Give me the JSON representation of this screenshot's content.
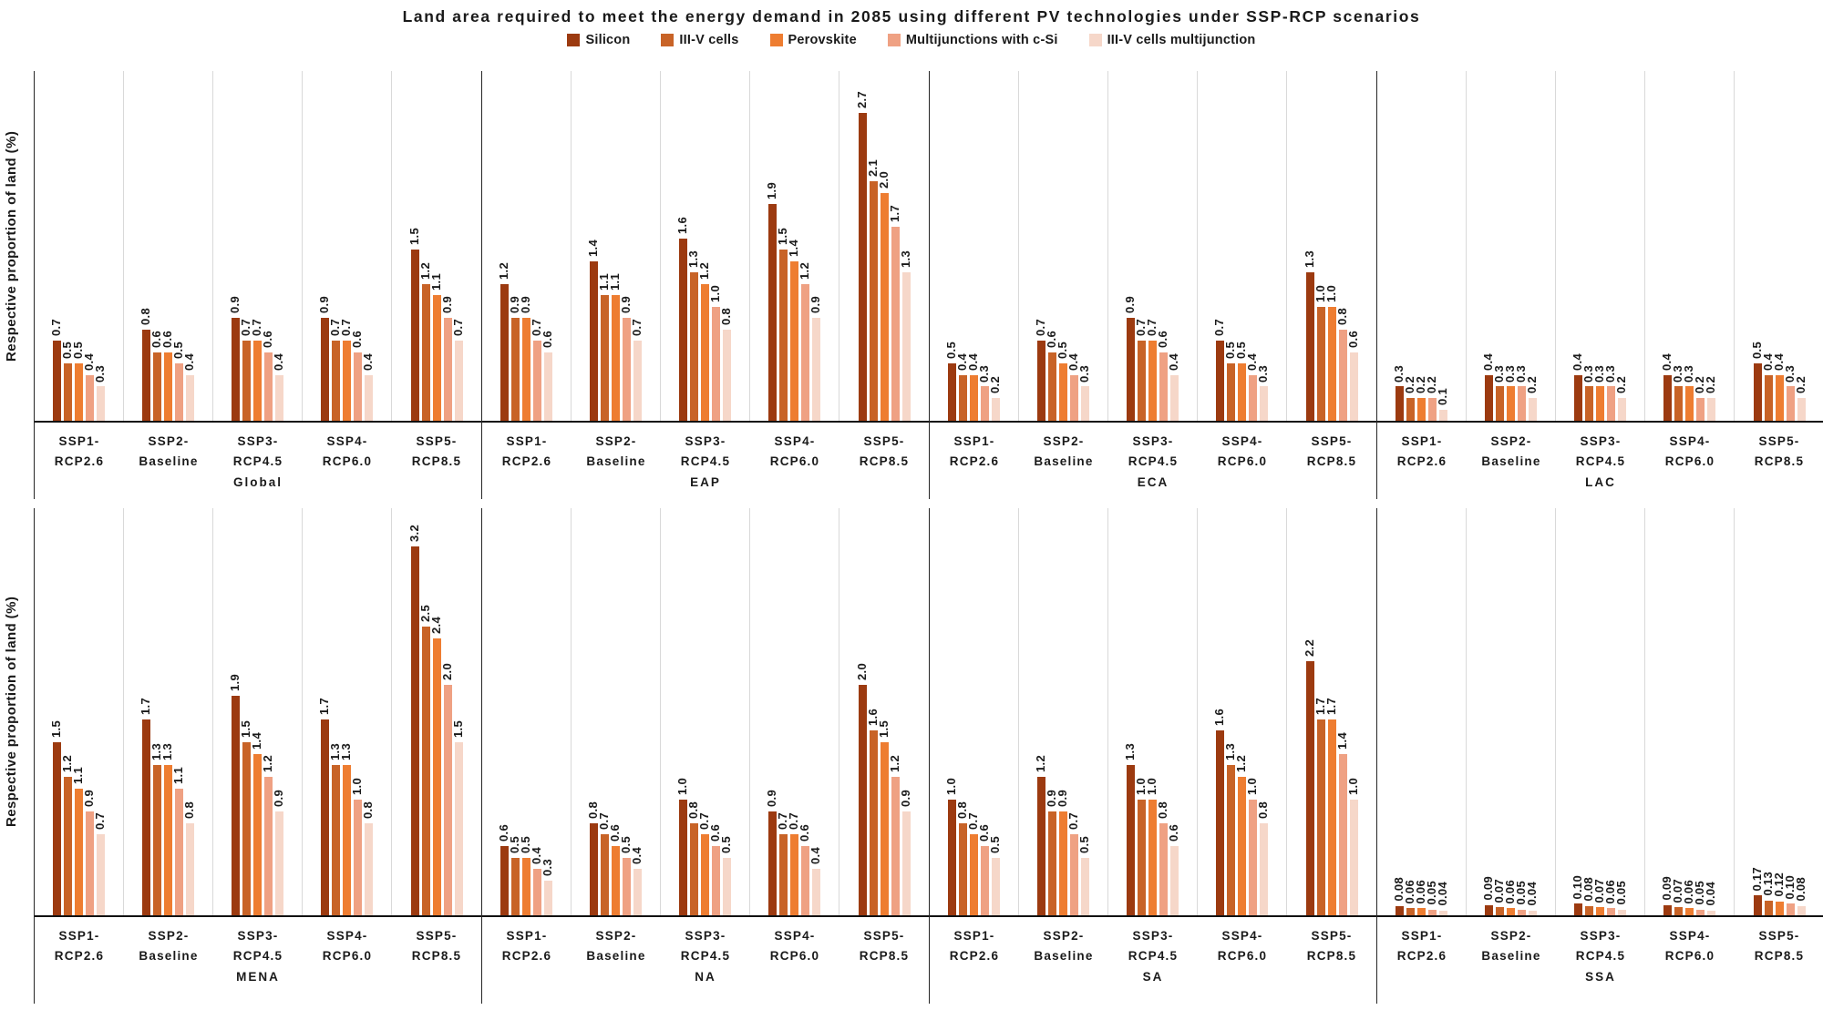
{
  "chart_data": {
    "type": "bar",
    "title": "Land area required to meet the energy demand in 2085 using different PV technologies under SSP-RCP scenarios",
    "ylabel": "Respective proportion of land (%)",
    "legend_position": "top",
    "grid": "vertical-lines-between-groups",
    "series_names": [
      "Silicon",
      "III-V cells",
      "Perovskite",
      "Multijunctions with c-Si",
      "III-V cells multijunction"
    ],
    "series_colors": [
      "#9C3A10",
      "#C86327",
      "#EE7D31",
      "#EFA183",
      "#F6D7C9"
    ],
    "scenarios": [
      "SSP1-RCP2.6",
      "SSP2-Baseline",
      "SSP3-RCP4.5",
      "SSP4-RCP6.0",
      "SSP5-RCP8.5"
    ],
    "rows": [
      {
        "ymax": 3.07,
        "regions": [
          {
            "name": "Global",
            "values": [
              [
                "0.7",
                "0.5",
                "0.5",
                "0.4",
                "0.3"
              ],
              [
                "0.8",
                "0.6",
                "0.6",
                "0.5",
                "0.4"
              ],
              [
                "0.9",
                "0.7",
                "0.7",
                "0.6",
                "0.4"
              ],
              [
                "0.9",
                "0.7",
                "0.7",
                "0.6",
                "0.4"
              ],
              [
                "1.5",
                "1.2",
                "1.1",
                "0.9",
                "0.7"
              ]
            ]
          },
          {
            "name": "EAP",
            "values": [
              [
                "1.2",
                "0.9",
                "0.9",
                "0.7",
                "0.6"
              ],
              [
                "1.4",
                "1.1",
                "1.1",
                "0.9",
                "0.7"
              ],
              [
                "1.6",
                "1.3",
                "1.2",
                "1.0",
                "0.8"
              ],
              [
                "1.9",
                "1.5",
                "1.4",
                "1.2",
                "0.9"
              ],
              [
                "2.7",
                "2.1",
                "2.0",
                "1.7",
                "1.3"
              ]
            ]
          },
          {
            "name": "ECA",
            "values": [
              [
                "0.5",
                "0.4",
                "0.4",
                "0.3",
                "0.2"
              ],
              [
                "0.7",
                "0.6",
                "0.5",
                "0.4",
                "0.3"
              ],
              [
                "0.9",
                "0.7",
                "0.7",
                "0.6",
                "0.4"
              ],
              [
                "0.7",
                "0.5",
                "0.5",
                "0.4",
                "0.3"
              ],
              [
                "1.3",
                "1.0",
                "1.0",
                "0.8",
                "0.6"
              ]
            ]
          },
          {
            "name": "LAC",
            "values": [
              [
                "0.3",
                "0.2",
                "0.2",
                "0.2",
                "0.1"
              ],
              [
                "0.4",
                "0.3",
                "0.3",
                "0.3",
                "0.2"
              ],
              [
                "0.4",
                "0.3",
                "0.3",
                "0.3",
                "0.2"
              ],
              [
                "0.4",
                "0.3",
                "0.3",
                "0.2",
                "0.2"
              ],
              [
                "0.5",
                "0.4",
                "0.4",
                "0.3",
                "0.2"
              ]
            ]
          }
        ]
      },
      {
        "ymax": 3.53,
        "regions": [
          {
            "name": "MENA",
            "values": [
              [
                "1.5",
                "1.2",
                "1.1",
                "0.9",
                "0.7"
              ],
              [
                "1.7",
                "1.3",
                "1.3",
                "1.1",
                "0.8"
              ],
              [
                "1.9",
                "1.5",
                "1.4",
                "1.2",
                "0.9"
              ],
              [
                "1.7",
                "1.3",
                "1.3",
                "1.0",
                "0.8"
              ],
              [
                "3.2",
                "2.5",
                "2.4",
                "2.0",
                "1.5"
              ]
            ]
          },
          {
            "name": "NA",
            "values": [
              [
                "0.6",
                "0.5",
                "0.5",
                "0.4",
                "0.3"
              ],
              [
                "0.8",
                "0.7",
                "0.6",
                "0.5",
                "0.4"
              ],
              [
                "1.0",
                "0.8",
                "0.7",
                "0.6",
                "0.5"
              ],
              [
                "0.9",
                "0.7",
                "0.7",
                "0.6",
                "0.4"
              ],
              [
                "2.0",
                "1.6",
                "1.5",
                "1.2",
                "0.9"
              ]
            ]
          },
          {
            "name": "SA",
            "values": [
              [
                "1.0",
                "0.8",
                "0.7",
                "0.6",
                "0.5"
              ],
              [
                "1.2",
                "0.9",
                "0.9",
                "0.7",
                "0.5"
              ],
              [
                "1.3",
                "1.0",
                "1.0",
                "0.8",
                "0.6"
              ],
              [
                "1.6",
                "1.3",
                "1.2",
                "1.0",
                "0.8"
              ],
              [
                "2.2",
                "1.7",
                "1.7",
                "1.4",
                "1.0"
              ]
            ]
          },
          {
            "name": "SSA",
            "values": [
              [
                "0.08",
                "0.06",
                "0.06",
                "0.05",
                "0.04"
              ],
              [
                "0.09",
                "0.07",
                "0.06",
                "0.05",
                "0.04"
              ],
              [
                "0.10",
                "0.08",
                "0.07",
                "0.06",
                "0.05"
              ],
              [
                "0.09",
                "0.07",
                "0.06",
                "0.05",
                "0.04"
              ],
              [
                "0.17",
                "0.13",
                "0.12",
                "0.10",
                "0.08"
              ]
            ]
          }
        ]
      }
    ]
  }
}
